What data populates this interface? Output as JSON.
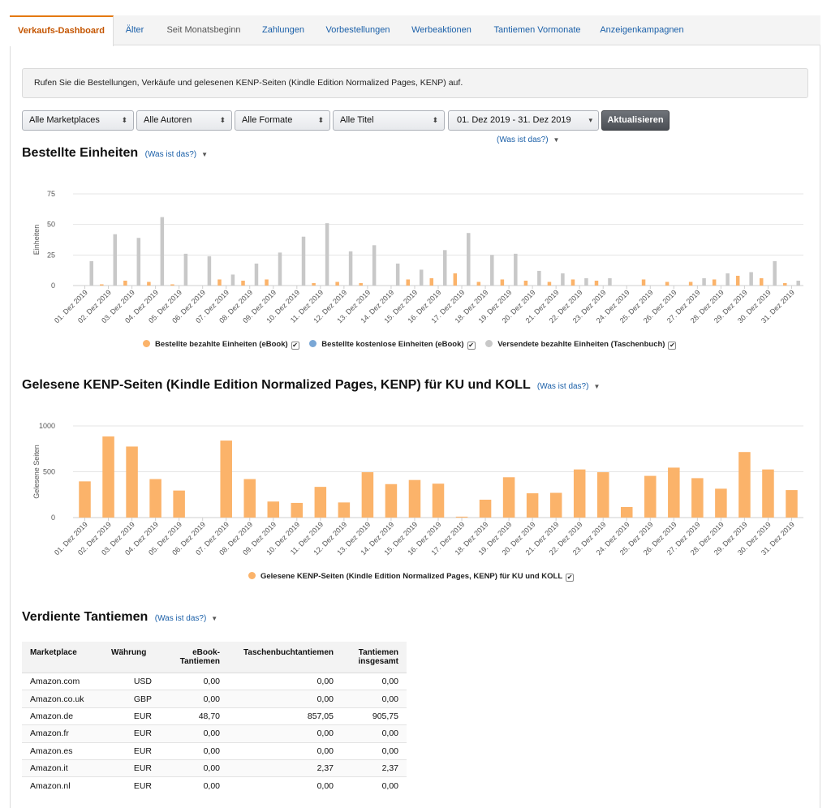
{
  "tabs": [
    {
      "label": "Verkaufs-Dashboard"
    },
    {
      "label": "Älter"
    },
    {
      "label": "Seit Monatsbeginn"
    },
    {
      "label": "Zahlungen"
    },
    {
      "label": "Vorbestellungen"
    },
    {
      "label": "Werbeaktionen"
    },
    {
      "label": "Tantiemen Vormonate"
    },
    {
      "label": "Anzeigenkampagnen"
    }
  ],
  "info_text": "Rufen Sie die Bestellungen, Verkäufe und gelesenen KENP-Seiten (Kindle Edition Normalized Pages, KENP) auf.",
  "filters": {
    "marketplace": "Alle Marketplaces",
    "author": "Alle Autoren",
    "format": "Alle Formate",
    "title": "Alle Titel",
    "date_range": "01. Dez 2019 - 31. Dez 2019",
    "update_button": "Aktualisieren",
    "whats_this": "(Was ist das?)"
  },
  "section_units": {
    "title": "Bestellte Einheiten",
    "link": "(Was ist das?)"
  },
  "section_kenp": {
    "title": "Gelesene KENP-Seiten (Kindle Edition Normalized Pages, KENP) für KU und KOLL",
    "link": "(Was ist das?)"
  },
  "section_royalties": {
    "title": "Verdiente Tantiemen",
    "link": "(Was ist das?)"
  },
  "chart_data": [
    {
      "type": "bar",
      "ylabel": "Einheiten",
      "ylim": [
        0,
        75
      ],
      "yticks": [
        0,
        25,
        50,
        75
      ],
      "grid": true,
      "legend_position": "bottom",
      "categories": [
        "01. Dez 2019",
        "02. Dez 2019",
        "03. Dez 2019",
        "04. Dez 2019",
        "05. Dez 2019",
        "06. Dez 2019",
        "07. Dez 2019",
        "08. Dez 2019",
        "09. Dez 2019",
        "10. Dez 2019",
        "11. Dez 2019",
        "12. Dez 2019",
        "13. Dez 2019",
        "14. Dez 2019",
        "15. Dez 2019",
        "16. Dez 2019",
        "17. Dez 2019",
        "18. Dez 2019",
        "19. Dez 2019",
        "20. Dez 2019",
        "21. Dez 2019",
        "22. Dez 2019",
        "23. Dez 2019",
        "24. Dez 2019",
        "25. Dez 2019",
        "26. Dez 2019",
        "27. Dez 2019",
        "28. Dez 2019",
        "29. Dez 2019",
        "30. Dez 2019",
        "31. Dez 2019"
      ],
      "series": [
        {
          "name": "Bestellte bezahlte Einheiten (eBook)",
          "color": "#fbb36a",
          "values": [
            0,
            1,
            4,
            3,
            1,
            0,
            5,
            4,
            5,
            0,
            2,
            3,
            2,
            0,
            5,
            6,
            10,
            3,
            5,
            4,
            3,
            5,
            4,
            0,
            5,
            3,
            3,
            5,
            8,
            6,
            2
          ]
        },
        {
          "name": "Bestellte kostenlose Einheiten (eBook)",
          "color": "#7aa7d6",
          "values": [
            0,
            0,
            0,
            0,
            0,
            0,
            0,
            0,
            0,
            0,
            0,
            0,
            0,
            0,
            0,
            0,
            0,
            0,
            0,
            0,
            0,
            0,
            0,
            0,
            0,
            0,
            0,
            0,
            0,
            0,
            0
          ]
        },
        {
          "name": "Versendete bezahlte Einheiten (Taschenbuch)",
          "color": "#c8c8c8",
          "values": [
            20,
            42,
            39,
            56,
            26,
            24,
            9,
            18,
            27,
            40,
            51,
            28,
            33,
            18,
            13,
            29,
            43,
            25,
            26,
            12,
            10,
            6,
            6,
            0,
            0,
            0,
            6,
            10,
            11,
            20,
            4
          ]
        }
      ]
    },
    {
      "type": "bar",
      "ylabel": "Gelesene Seiten",
      "ylim": [
        0,
        1000
      ],
      "yticks": [
        0,
        500,
        1000
      ],
      "grid": true,
      "legend_position": "bottom",
      "categories": [
        "01. Dez 2019",
        "02. Dez 2019",
        "03. Dez 2019",
        "04. Dez 2019",
        "05. Dez 2019",
        "06. Dez 2019",
        "07. Dez 2019",
        "08. Dez 2019",
        "09. Dez 2019",
        "10. Dez 2019",
        "11. Dez 2019",
        "12. Dez 2019",
        "13. Dez 2019",
        "14. Dez 2019",
        "15. Dez 2019",
        "16. Dez 2019",
        "17. Dez 2019",
        "18. Dez 2019",
        "19. Dez 2019",
        "20. Dez 2019",
        "21. Dez 2019",
        "22. Dez 2019",
        "23. Dez 2019",
        "24. Dez 2019",
        "25. Dez 2019",
        "26. Dez 2019",
        "27. Dez 2019",
        "28. Dez 2019",
        "29. Dez 2019",
        "30. Dez 2019",
        "31. Dez 2019"
      ],
      "series": [
        {
          "name": "Gelesene KENP-Seiten (Kindle Edition Normalized Pages, KENP) für KU und KOLL",
          "color": "#fbb36a",
          "values": [
            395,
            885,
            775,
            420,
            295,
            0,
            840,
            420,
            175,
            160,
            335,
            165,
            495,
            365,
            410,
            370,
            10,
            195,
            440,
            265,
            270,
            525,
            495,
            115,
            455,
            545,
            430,
            315,
            715,
            525,
            300
          ]
        }
      ]
    }
  ],
  "royalties_table": {
    "headers": [
      "Marketplace",
      "Währung",
      "eBook-\nTantiemen",
      "Taschenbuchtantiemen",
      "Tantiemen\ninsgesamt"
    ],
    "rows": [
      [
        "Amazon.com",
        "USD",
        "0,00",
        "0,00",
        "0,00"
      ],
      [
        "Amazon.co.uk",
        "GBP",
        "0,00",
        "0,00",
        "0,00"
      ],
      [
        "Amazon.de",
        "EUR",
        "48,70",
        "857,05",
        "905,75"
      ],
      [
        "Amazon.fr",
        "EUR",
        "0,00",
        "0,00",
        "0,00"
      ],
      [
        "Amazon.es",
        "EUR",
        "0,00",
        "0,00",
        "0,00"
      ],
      [
        "Amazon.it",
        "EUR",
        "0,00",
        "2,37",
        "2,37"
      ],
      [
        "Amazon.nl",
        "EUR",
        "0,00",
        "0,00",
        "0,00"
      ]
    ]
  }
}
